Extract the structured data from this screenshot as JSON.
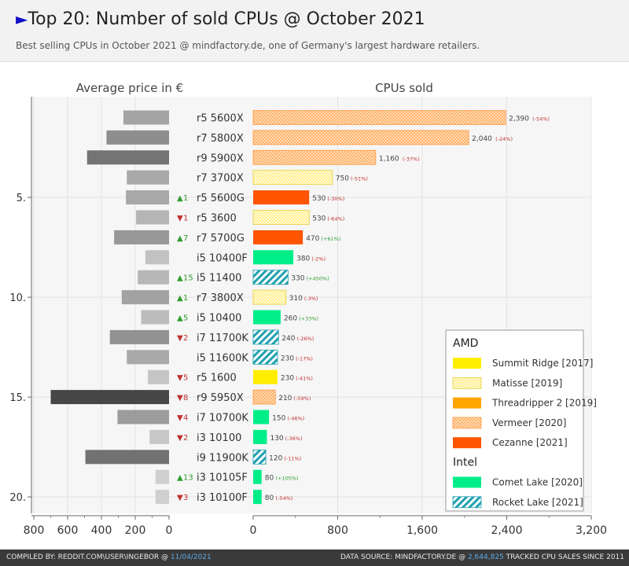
{
  "header": {
    "title": "Top 20: Number of sold CPUs  @ October 2021",
    "subtitle": "Best selling CPUs in October 2021 @ mindfactory.de, one of Germany's largest hardware retailers."
  },
  "footer": {
    "compiled_prefix": "COMPILED BY: REDDIT.COM\\USER\\INGEBOR @ ",
    "compiled_date": "11/04/2021",
    "source_prefix": "DATA SOURCE: MINDFACTORY.DE @ ",
    "source_count": "2,644,825",
    "source_suffix": " TRACKED CPU SALES SINCE 2011"
  },
  "colors": {
    "summit_ridge": "#ffee00",
    "matisse": "#fff59a",
    "threadripper": "#ffa500",
    "vermeer": "#ffa050",
    "cezanne": "#ff5500",
    "comet_lake": "#00ee88",
    "rocket_lake": "#20a0b0",
    "up": "#2e9e2e",
    "down": "#c03030"
  },
  "chart_data": {
    "type": "bar",
    "left_panel": {
      "title": "Average price in €",
      "ticks": [
        "800",
        "600",
        "400",
        "200",
        "0"
      ],
      "xlim": [
        800,
        0
      ]
    },
    "right_panel": {
      "title": "CPUs sold",
      "ticks": [
        "0",
        "800",
        "1,600",
        "2,400",
        "3,200"
      ],
      "xlim": [
        0,
        3200
      ]
    },
    "rank_ticks": [
      "5.",
      "10.",
      "15.",
      "20."
    ],
    "rows": [
      {
        "name": "r5 5600X",
        "sold": 2390,
        "sold_label": "2,390",
        "change": "(-54%)",
        "change_dir": "down",
        "price": 270,
        "rank_change": "",
        "rank_dir": "",
        "family": "vermeer"
      },
      {
        "name": "r7 5800X",
        "sold": 2040,
        "sold_label": "2,040",
        "change": "(-24%)",
        "change_dir": "down",
        "price": 370,
        "rank_change": "",
        "rank_dir": "",
        "family": "vermeer"
      },
      {
        "name": "r9 5900X",
        "sold": 1160,
        "sold_label": "1,160",
        "change": "(-37%)",
        "change_dir": "down",
        "price": 485,
        "rank_change": "",
        "rank_dir": "",
        "family": "vermeer"
      },
      {
        "name": "r7 3700X",
        "sold": 750,
        "sold_label": "750",
        "change": "(-51%)",
        "change_dir": "down",
        "price": 250,
        "rank_change": "",
        "rank_dir": "",
        "family": "matisse"
      },
      {
        "name": "r5 5600G",
        "sold": 530,
        "sold_label": "530",
        "change": "(-30%)",
        "change_dir": "down",
        "price": 255,
        "rank_change": "1",
        "rank_dir": "up",
        "family": "cezanne"
      },
      {
        "name": "r5 3600",
        "sold": 530,
        "sold_label": "530",
        "change": "(-64%)",
        "change_dir": "down",
        "price": 195,
        "rank_change": "1",
        "rank_dir": "down",
        "family": "matisse"
      },
      {
        "name": "r7 5700G",
        "sold": 470,
        "sold_label": "470",
        "change": "(+61%)",
        "change_dir": "up",
        "price": 325,
        "rank_change": "7",
        "rank_dir": "up",
        "family": "cezanne"
      },
      {
        "name": "i5 10400F",
        "sold": 380,
        "sold_label": "380",
        "change": "(-2%)",
        "change_dir": "down",
        "price": 140,
        "rank_change": "",
        "rank_dir": "",
        "family": "comet_lake"
      },
      {
        "name": "i5 11400",
        "sold": 330,
        "sold_label": "330",
        "change": "(+450%)",
        "change_dir": "up",
        "price": 185,
        "rank_change": "15",
        "rank_dir": "up",
        "family": "rocket_lake"
      },
      {
        "name": "r7 3800X",
        "sold": 310,
        "sold_label": "310",
        "change": "(-3%)",
        "change_dir": "down",
        "price": 280,
        "rank_change": "1",
        "rank_dir": "up",
        "family": "matisse"
      },
      {
        "name": "i5 10400",
        "sold": 260,
        "sold_label": "260",
        "change": "(+33%)",
        "change_dir": "up",
        "price": 165,
        "rank_change": "5",
        "rank_dir": "up",
        "family": "comet_lake"
      },
      {
        "name": "i7 11700K",
        "sold": 240,
        "sold_label": "240",
        "change": "(-26%)",
        "change_dir": "down",
        "price": 350,
        "rank_change": "2",
        "rank_dir": "down",
        "family": "rocket_lake"
      },
      {
        "name": "i5 11600K",
        "sold": 230,
        "sold_label": "230",
        "change": "(-17%)",
        "change_dir": "down",
        "price": 250,
        "rank_change": "",
        "rank_dir": "",
        "family": "rocket_lake"
      },
      {
        "name": "r5 1600",
        "sold": 230,
        "sold_label": "230",
        "change": "(-41%)",
        "change_dir": "down",
        "price": 125,
        "rank_change": "5",
        "rank_dir": "down",
        "family": "summit_ridge"
      },
      {
        "name": "r9 5950X",
        "sold": 210,
        "sold_label": "210",
        "change": "(-59%)",
        "change_dir": "down",
        "price": 700,
        "rank_change": "8",
        "rank_dir": "down",
        "family": "vermeer"
      },
      {
        "name": "i7 10700K",
        "sold": 150,
        "sold_label": "150",
        "change": "(-46%)",
        "change_dir": "down",
        "price": 305,
        "rank_change": "4",
        "rank_dir": "down",
        "family": "comet_lake"
      },
      {
        "name": "i3 10100",
        "sold": 130,
        "sold_label": "130",
        "change": "(-36%)",
        "change_dir": "down",
        "price": 115,
        "rank_change": "2",
        "rank_dir": "down",
        "family": "comet_lake"
      },
      {
        "name": "i9 11900K",
        "sold": 120,
        "sold_label": "120",
        "change": "(-11%)",
        "change_dir": "down",
        "price": 495,
        "rank_change": "",
        "rank_dir": "",
        "family": "rocket_lake"
      },
      {
        "name": "i3 10105F",
        "sold": 80,
        "sold_label": "80",
        "change": "(+105%)",
        "change_dir": "up",
        "price": 80,
        "rank_change": "13",
        "rank_dir": "up",
        "family": "comet_lake"
      },
      {
        "name": "i3 10100F",
        "sold": 80,
        "sold_label": "80",
        "change": "(-54%)",
        "change_dir": "down",
        "price": 80,
        "rank_change": "3",
        "rank_dir": "down",
        "family": "comet_lake"
      }
    ],
    "legend": {
      "groups": [
        {
          "title": "AMD",
          "items": [
            {
              "key": "summit_ridge",
              "label": "Summit Ridge [2017]"
            },
            {
              "key": "matisse",
              "label": "Matisse [2019]"
            },
            {
              "key": "threadripper",
              "label": "Threadripper 2 [2019]"
            },
            {
              "key": "vermeer",
              "label": "Vermeer [2020]"
            },
            {
              "key": "cezanne",
              "label": "Cezanne [2021]"
            }
          ]
        },
        {
          "title": "Intel",
          "items": [
            {
              "key": "comet_lake",
              "label": "Comet Lake [2020]"
            },
            {
              "key": "rocket_lake",
              "label": "Rocket Lake [2021]"
            }
          ]
        }
      ]
    }
  }
}
